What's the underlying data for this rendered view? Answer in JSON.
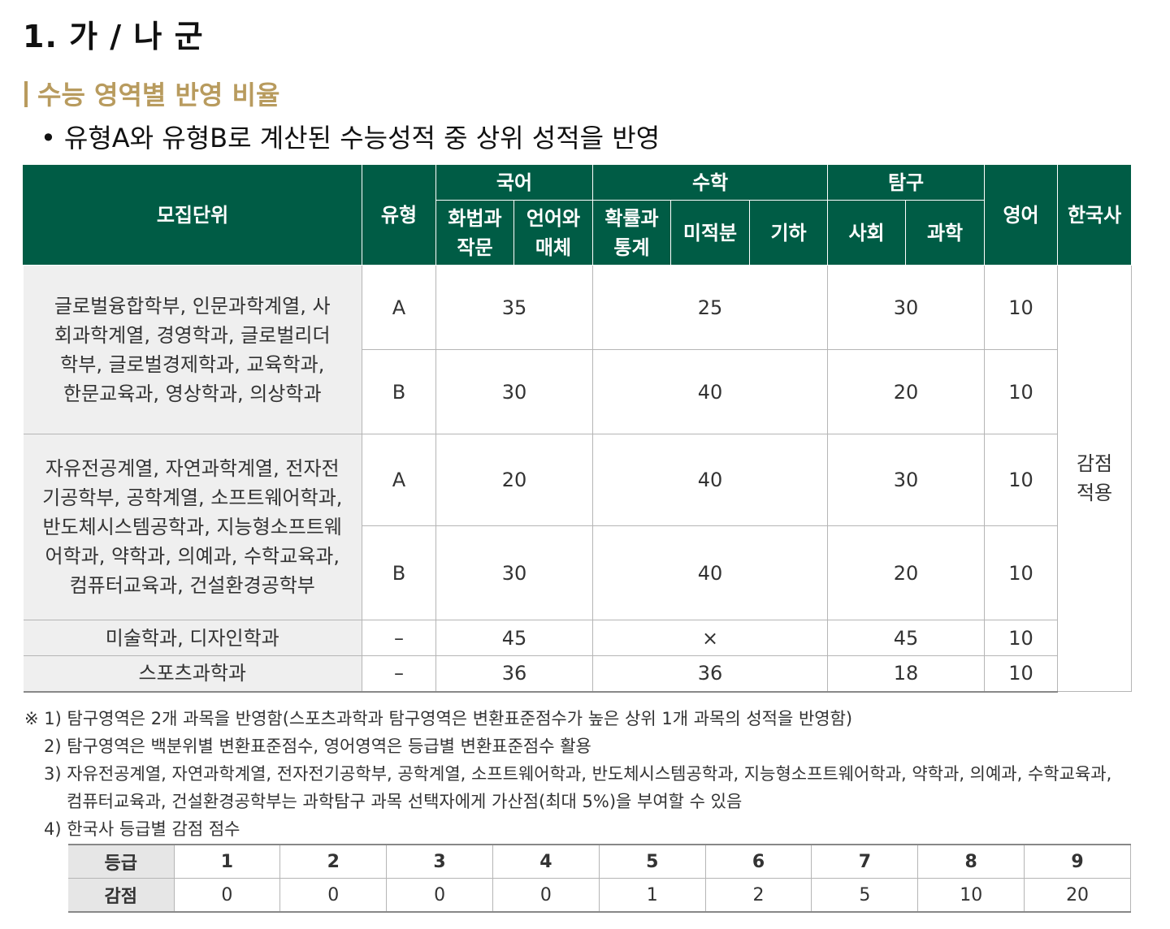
{
  "heading": "1. 가 / 나 군",
  "subheading": "수능 영역별 반영 비율",
  "bullet": "유형A와 유형B로 계산된 수능성적 중 상위 성적을 반영",
  "table": {
    "headers": {
      "unit": "모집단위",
      "type": "유형",
      "korean": "국어",
      "korean_sub1": "화법과 작문",
      "korean_sub2": "언어와 매체",
      "math": "수학",
      "math_sub1": "확률과 통계",
      "math_sub2": "미적분",
      "math_sub3": "기하",
      "inquiry": "탐구",
      "inquiry_sub1": "사회",
      "inquiry_sub2": "과학",
      "english": "영어",
      "history": "한국사"
    },
    "history_value": "감점 적용",
    "groups": [
      {
        "units": "글로벌융합학부, 인문과학계열, 사회과학계열, 경영학과, 글로벌리더학부, 글로벌경제학과, 교육학과, 한문교육과, 영상학과, 의상학과",
        "rows": [
          {
            "type": "A",
            "korean": "35",
            "math": "25",
            "inquiry": "30",
            "english": "10"
          },
          {
            "type": "B",
            "korean": "30",
            "math": "40",
            "inquiry": "20",
            "english": "10"
          }
        ]
      },
      {
        "units": "자유전공계열, 자연과학계열, 전자전기공학부, 공학계열, 소프트웨어학과, 반도체시스템공학과, 지능형소프트웨어학과, 약학과, 의예과, 수학교육과, 컴퓨터교육과, 건설환경공학부",
        "rows": [
          {
            "type": "A",
            "korean": "20",
            "math": "40",
            "inquiry": "30",
            "english": "10"
          },
          {
            "type": "B",
            "korean": "30",
            "math": "40",
            "inquiry": "20",
            "english": "10"
          }
        ]
      },
      {
        "units": "미술학과, 디자인학과",
        "rows": [
          {
            "type": "–",
            "korean": "45",
            "math": "×",
            "inquiry": "45",
            "english": "10"
          }
        ]
      },
      {
        "units": "스포츠과학과",
        "rows": [
          {
            "type": "–",
            "korean": "36",
            "math": "36",
            "inquiry": "18",
            "english": "10"
          }
        ]
      }
    ]
  },
  "notes": {
    "n1": "※ 1) 탐구영역은 2개 과목을 반영함(스포츠과학과 탐구영역은 변환표준점수가 높은 상위 1개 과목의 성적을 반영함)",
    "n2": "2) 탐구영역은 백분위별 변환표준점수, 영어영역은 등급별 변환표준점수 활용",
    "n3a": "3) 자유전공계열, 자연과학계열, 전자전기공학부, 공학계열, 소프트웨어학과, 반도체시스템공학과, 지능형소프트웨어학과, 약학과, 의예과, 수학교육과,",
    "n3b": "컴퓨터교육과, 건설환경공학부는 과학탐구 과목 선택자에게 가산점(최대 5%)을 부여할 수 있음",
    "n4": "4) 한국사 등급별 감점 점수"
  },
  "grade_table": {
    "row1_label": "등급",
    "row2_label": "감점",
    "grades": [
      "1",
      "2",
      "3",
      "4",
      "5",
      "6",
      "7",
      "8",
      "9"
    ],
    "deductions": [
      "0",
      "0",
      "0",
      "0",
      "1",
      "2",
      "5",
      "10",
      "20"
    ]
  },
  "colors": {
    "header_green": "#005c45",
    "accent_gold": "#b89b5e",
    "unit_bg": "#efefef"
  }
}
